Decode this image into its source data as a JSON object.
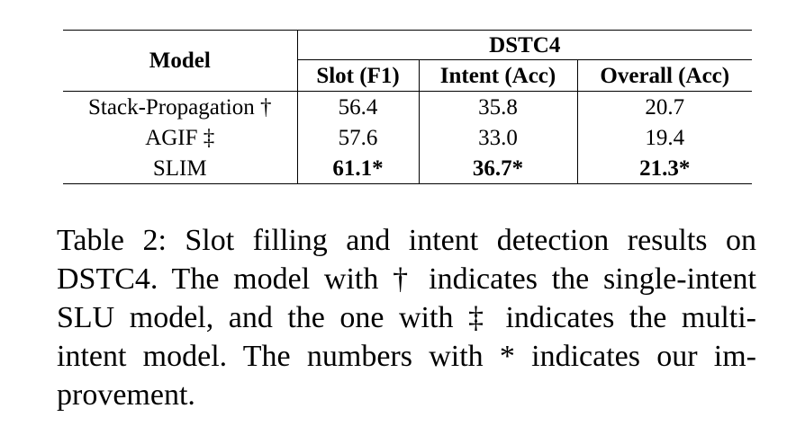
{
  "table": {
    "header": {
      "model": "Model",
      "group": "DSTC4",
      "columns": [
        "Slot (F1)",
        "Intent (Acc)",
        "Overall (Acc)"
      ]
    },
    "rows": [
      {
        "model": "Stack-Propagation †",
        "slot": "56.4",
        "intent": "35.8",
        "overall": "20.7",
        "bold": false
      },
      {
        "model": "AGIF ‡",
        "slot": "57.6",
        "intent": "33.0",
        "overall": "19.4",
        "bold": false
      },
      {
        "model": "SLIM",
        "slot": "61.1*",
        "intent": "36.7*",
        "overall": "21.3*",
        "bold": true
      }
    ]
  },
  "caption": {
    "lines": [
      "Table 2:  Slot filling and intent detection results on",
      "DSTC4.  The model with † indicates the single-intent",
      "SLU model, and the one with ‡ indicates the multi-",
      "intent model.  The numbers with * indicates our im-",
      "provement."
    ]
  }
}
